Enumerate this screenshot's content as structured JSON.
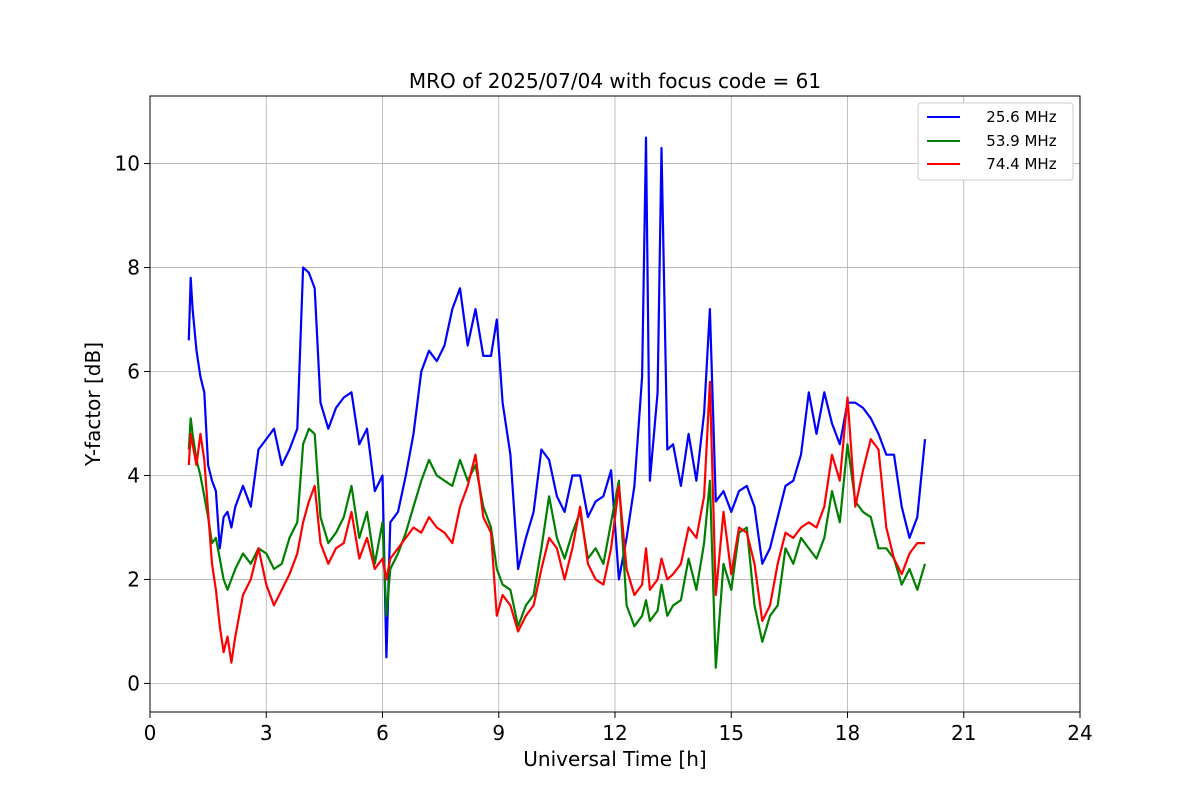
{
  "chart_data": {
    "type": "line",
    "title": "MRO of 2025/07/04 with focus code = 61",
    "xlabel": "Universal Time [h]",
    "ylabel": "Y-factor [dB]",
    "xlim": [
      0,
      24
    ],
    "ylim": [
      -0.55,
      11.3
    ],
    "xticks": [
      0,
      3,
      6,
      9,
      12,
      15,
      18,
      21,
      24
    ],
    "xtick_labels": [
      "0",
      "3",
      "6",
      "9",
      "12",
      "15",
      "18",
      "21",
      "24"
    ],
    "yticks": [
      0,
      2,
      4,
      6,
      8,
      10
    ],
    "ytick_labels": [
      "0",
      "2",
      "4",
      "6",
      "8",
      "10"
    ],
    "grid": true,
    "legend_position": "top-right",
    "legend_labels": [
      "   25.6 MHz",
      "   53.9 MHz",
      "   74.4 MHz"
    ],
    "series": [
      {
        "name": "25.6 MHz",
        "color": "#0000ff",
        "x": [
          1.0,
          1.05,
          1.1,
          1.2,
          1.3,
          1.4,
          1.5,
          1.6,
          1.7,
          1.8,
          1.9,
          2.0,
          2.1,
          2.2,
          2.4,
          2.6,
          2.8,
          3.0,
          3.2,
          3.4,
          3.6,
          3.8,
          3.95,
          4.1,
          4.25,
          4.4,
          4.6,
          4.8,
          5.0,
          5.2,
          5.4,
          5.6,
          5.8,
          6.0,
          6.1,
          6.2,
          6.4,
          6.6,
          6.8,
          7.0,
          7.2,
          7.4,
          7.6,
          7.8,
          8.0,
          8.2,
          8.4,
          8.6,
          8.8,
          8.95,
          9.1,
          9.3,
          9.5,
          9.7,
          9.9,
          10.1,
          10.3,
          10.5,
          10.7,
          10.9,
          11.1,
          11.3,
          11.5,
          11.7,
          11.9,
          12.1,
          12.3,
          12.5,
          12.7,
          12.8,
          12.9,
          13.1,
          13.2,
          13.35,
          13.5,
          13.7,
          13.9,
          14.1,
          14.3,
          14.45,
          14.6,
          14.8,
          15.0,
          15.2,
          15.4,
          15.6,
          15.8,
          16.0,
          16.2,
          16.4,
          16.6,
          16.8,
          17.0,
          17.2,
          17.4,
          17.6,
          17.8,
          18.0,
          18.2,
          18.4,
          18.6,
          18.8,
          19.0,
          19.2,
          19.4,
          19.6,
          19.8,
          20.0
        ],
        "values": [
          6.6,
          7.8,
          7.2,
          6.4,
          5.9,
          5.6,
          4.2,
          3.9,
          3.7,
          2.6,
          3.2,
          3.3,
          3.0,
          3.4,
          3.8,
          3.4,
          4.5,
          4.7,
          4.9,
          4.2,
          4.5,
          4.9,
          8.0,
          7.9,
          7.6,
          5.4,
          4.9,
          5.3,
          5.5,
          5.6,
          4.6,
          4.9,
          3.7,
          4.0,
          0.5,
          3.1,
          3.3,
          4.0,
          4.8,
          6.0,
          6.4,
          6.2,
          6.5,
          7.2,
          7.6,
          6.5,
          7.2,
          6.3,
          6.3,
          7.0,
          5.4,
          4.4,
          2.2,
          2.8,
          3.3,
          4.5,
          4.3,
          3.6,
          3.3,
          4.0,
          4.0,
          3.2,
          3.5,
          3.6,
          4.1,
          2.0,
          2.8,
          3.8,
          5.9,
          10.5,
          3.9,
          5.6,
          10.3,
          4.5,
          4.6,
          3.8,
          4.8,
          3.9,
          5.2,
          7.2,
          3.5,
          3.7,
          3.3,
          3.7,
          3.8,
          3.4,
          2.3,
          2.6,
          3.2,
          3.8,
          3.9,
          4.4,
          5.6,
          4.8,
          5.6,
          5.0,
          4.6,
          5.4,
          5.4,
          5.3,
          5.1,
          4.8,
          4.4,
          4.4,
          3.4,
          2.8,
          3.2,
          4.7
        ]
      },
      {
        "name": "53.9 MHz",
        "color": "#008000",
        "x": [
          1.0,
          1.05,
          1.1,
          1.2,
          1.3,
          1.4,
          1.5,
          1.6,
          1.7,
          1.8,
          1.9,
          2.0,
          2.1,
          2.2,
          2.4,
          2.6,
          2.8,
          3.0,
          3.2,
          3.4,
          3.6,
          3.8,
          3.95,
          4.1,
          4.25,
          4.4,
          4.6,
          4.8,
          5.0,
          5.2,
          5.4,
          5.6,
          5.8,
          6.0,
          6.1,
          6.2,
          6.4,
          6.6,
          6.8,
          7.0,
          7.2,
          7.4,
          7.6,
          7.8,
          8.0,
          8.2,
          8.4,
          8.6,
          8.8,
          8.95,
          9.1,
          9.3,
          9.5,
          9.7,
          9.9,
          10.1,
          10.3,
          10.5,
          10.7,
          10.9,
          11.1,
          11.3,
          11.5,
          11.7,
          11.9,
          12.1,
          12.3,
          12.5,
          12.7,
          12.8,
          12.9,
          13.1,
          13.2,
          13.35,
          13.5,
          13.7,
          13.9,
          14.1,
          14.3,
          14.45,
          14.6,
          14.8,
          15.0,
          15.2,
          15.4,
          15.6,
          15.8,
          16.0,
          16.2,
          16.4,
          16.6,
          16.8,
          17.0,
          17.2,
          17.4,
          17.6,
          17.8,
          18.0,
          18.2,
          18.4,
          18.6,
          18.8,
          19.0,
          19.2,
          19.4,
          19.6,
          19.8,
          20.0
        ],
        "values": [
          4.5,
          5.1,
          4.8,
          4.3,
          4.0,
          3.6,
          3.2,
          2.7,
          2.8,
          2.4,
          2.0,
          1.8,
          2.0,
          2.2,
          2.5,
          2.3,
          2.6,
          2.5,
          2.2,
          2.3,
          2.8,
          3.1,
          4.6,
          4.9,
          4.8,
          3.2,
          2.7,
          2.9,
          3.2,
          3.8,
          2.8,
          3.3,
          2.3,
          3.1,
          1.3,
          2.2,
          2.5,
          2.9,
          3.4,
          3.9,
          4.3,
          4.0,
          3.9,
          3.8,
          4.3,
          3.9,
          4.2,
          3.4,
          3.0,
          2.2,
          1.9,
          1.8,
          1.1,
          1.5,
          1.7,
          2.6,
          3.6,
          2.8,
          2.4,
          2.9,
          3.3,
          2.4,
          2.6,
          2.3,
          3.1,
          3.9,
          1.5,
          1.1,
          1.3,
          1.6,
          1.2,
          1.4,
          1.9,
          1.3,
          1.5,
          1.6,
          2.4,
          1.8,
          2.7,
          3.9,
          0.3,
          2.3,
          1.8,
          2.9,
          3.0,
          1.5,
          0.8,
          1.3,
          1.5,
          2.6,
          2.3,
          2.8,
          2.6,
          2.4,
          2.8,
          3.7,
          3.1,
          4.6,
          3.5,
          3.3,
          3.2,
          2.6,
          2.6,
          2.4,
          1.9,
          2.2,
          1.8,
          2.3
        ]
      },
      {
        "name": "74.4 MHz",
        "color": "#ff0000",
        "x": [
          1.0,
          1.05,
          1.1,
          1.2,
          1.3,
          1.4,
          1.5,
          1.6,
          1.7,
          1.8,
          1.9,
          2.0,
          2.1,
          2.2,
          2.4,
          2.6,
          2.8,
          3.0,
          3.2,
          3.4,
          3.6,
          3.8,
          3.95,
          4.1,
          4.25,
          4.4,
          4.6,
          4.8,
          5.0,
          5.2,
          5.4,
          5.6,
          5.8,
          6.0,
          6.1,
          6.2,
          6.4,
          6.6,
          6.8,
          7.0,
          7.2,
          7.4,
          7.6,
          7.8,
          8.0,
          8.2,
          8.4,
          8.6,
          8.8,
          8.95,
          9.1,
          9.3,
          9.5,
          9.7,
          9.9,
          10.1,
          10.3,
          10.5,
          10.7,
          10.9,
          11.1,
          11.3,
          11.5,
          11.7,
          11.9,
          12.1,
          12.3,
          12.5,
          12.7,
          12.8,
          12.9,
          13.1,
          13.2,
          13.35,
          13.5,
          13.7,
          13.9,
          14.1,
          14.3,
          14.45,
          14.6,
          14.8,
          15.0,
          15.2,
          15.4,
          15.6,
          15.8,
          16.0,
          16.2,
          16.4,
          16.6,
          16.8,
          17.0,
          17.2,
          17.4,
          17.6,
          17.8,
          18.0,
          18.2,
          18.4,
          18.6,
          18.8,
          19.0,
          19.2,
          19.4,
          19.6,
          19.8,
          20.0
        ],
        "values": [
          4.2,
          4.8,
          4.6,
          4.2,
          4.8,
          4.3,
          3.3,
          2.3,
          1.8,
          1.1,
          0.6,
          0.9,
          0.4,
          0.9,
          1.7,
          2.0,
          2.6,
          1.9,
          1.5,
          1.8,
          2.1,
          2.5,
          3.1,
          3.5,
          3.8,
          2.7,
          2.3,
          2.6,
          2.7,
          3.3,
          2.4,
          2.8,
          2.2,
          2.4,
          2.0,
          2.4,
          2.6,
          2.8,
          3.0,
          2.9,
          3.2,
          3.0,
          2.9,
          2.7,
          3.4,
          3.8,
          4.4,
          3.2,
          2.9,
          1.3,
          1.7,
          1.5,
          1.0,
          1.3,
          1.5,
          2.2,
          2.8,
          2.6,
          2.0,
          2.6,
          3.4,
          2.3,
          2.0,
          1.9,
          2.6,
          3.8,
          2.2,
          1.7,
          1.9,
          2.6,
          1.8,
          2.0,
          2.4,
          2.0,
          2.1,
          2.3,
          3.0,
          2.8,
          3.6,
          5.8,
          1.7,
          3.3,
          2.1,
          3.0,
          2.9,
          2.3,
          1.2,
          1.5,
          2.3,
          2.9,
          2.8,
          3.0,
          3.1,
          3.0,
          3.4,
          4.4,
          3.9,
          5.5,
          3.4,
          4.1,
          4.7,
          4.5,
          3.0,
          2.4,
          2.1,
          2.5,
          2.7,
          2.7
        ]
      }
    ]
  }
}
